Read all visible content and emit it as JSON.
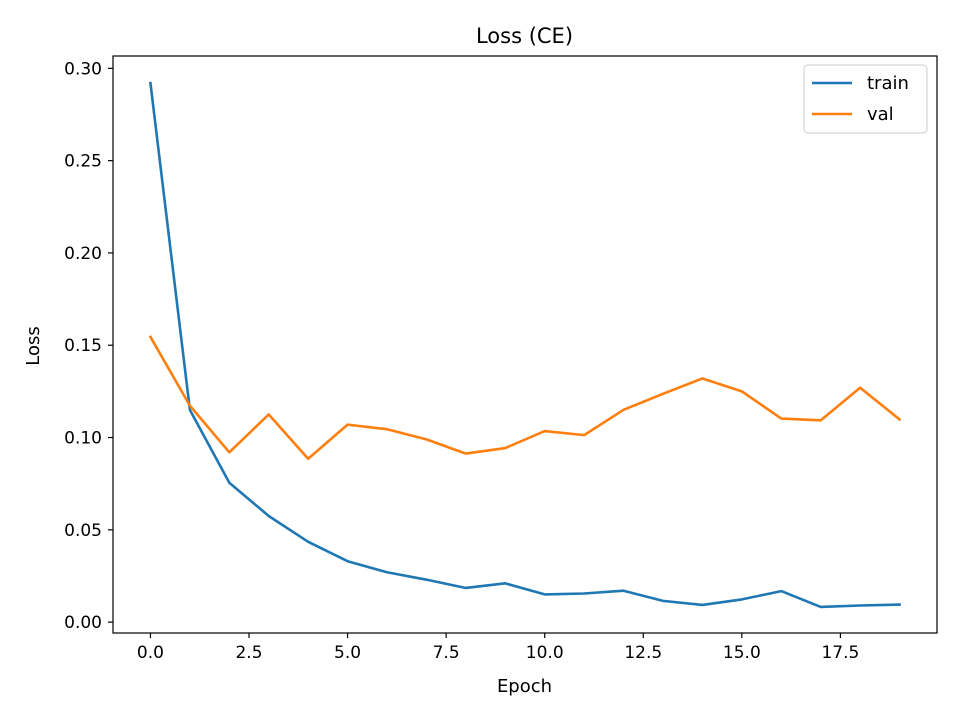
{
  "chart_data": {
    "type": "line",
    "title": "Loss (CE)",
    "xlabel": "Epoch",
    "ylabel": "Loss",
    "xlim": [
      -0.95,
      19.95
    ],
    "ylim": [
      -0.0059,
      0.3067
    ],
    "x_ticks": [
      0.0,
      2.5,
      5.0,
      7.5,
      10.0,
      12.5,
      15.0,
      17.5
    ],
    "x_tick_labels": [
      "0.0",
      "2.5",
      "5.0",
      "7.5",
      "10.0",
      "12.5",
      "15.0",
      "17.5"
    ],
    "y_ticks": [
      0.0,
      0.05,
      0.1,
      0.15,
      0.2,
      0.25,
      0.3
    ],
    "y_tick_labels": [
      "0.00",
      "0.05",
      "0.10",
      "0.15",
      "0.20",
      "0.25",
      "0.30"
    ],
    "grid": false,
    "legend_position": "top-right",
    "x": [
      0,
      1,
      2,
      3,
      4,
      5,
      6,
      7,
      8,
      9,
      10,
      11,
      12,
      13,
      14,
      15,
      16,
      17,
      18,
      19
    ],
    "series": [
      {
        "name": "train",
        "color": "#1f77b4",
        "values": [
          0.292,
          0.115,
          0.0755,
          0.0575,
          0.0435,
          0.033,
          0.027,
          0.023,
          0.0185,
          0.021,
          0.015,
          0.0155,
          0.017,
          0.0115,
          0.0093,
          0.0123,
          0.0168,
          0.0082,
          0.009,
          0.0095
        ]
      },
      {
        "name": "val",
        "color": "#ff7f0e",
        "values": [
          0.1545,
          0.1173,
          0.092,
          0.1125,
          0.0885,
          0.107,
          0.1045,
          0.099,
          0.0913,
          0.0943,
          0.1035,
          0.1013,
          0.115,
          0.1237,
          0.132,
          0.125,
          0.1103,
          0.1093,
          0.127,
          0.1098
        ]
      }
    ]
  }
}
